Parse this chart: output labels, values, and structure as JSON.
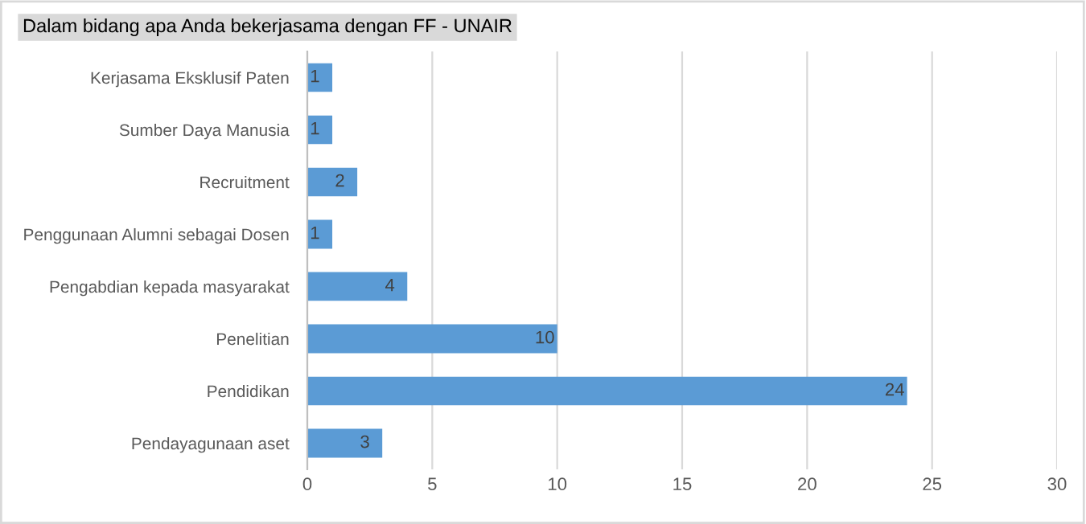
{
  "chart_data": {
    "type": "bar",
    "orientation": "horizontal",
    "title": "Dalam bidang apa Anda bekerjasama dengan FF - UNAIR",
    "categories": [
      "Kerjasama Eksklusif Paten",
      "Sumber Daya Manusia",
      "Recruitment",
      "Penggunaan Alumni sebagai Dosen",
      "Pengabdian kepada masyarakat",
      "Penelitian",
      "Pendidikan",
      "Pendayagunaan aset"
    ],
    "values": [
      1,
      1,
      2,
      1,
      4,
      10,
      24,
      3
    ],
    "color": "#5b9bd5",
    "xlim": [
      0,
      30
    ],
    "xticks": [
      0,
      5,
      10,
      15,
      20,
      25,
      30
    ],
    "grid": "x",
    "data_labels": true
  }
}
